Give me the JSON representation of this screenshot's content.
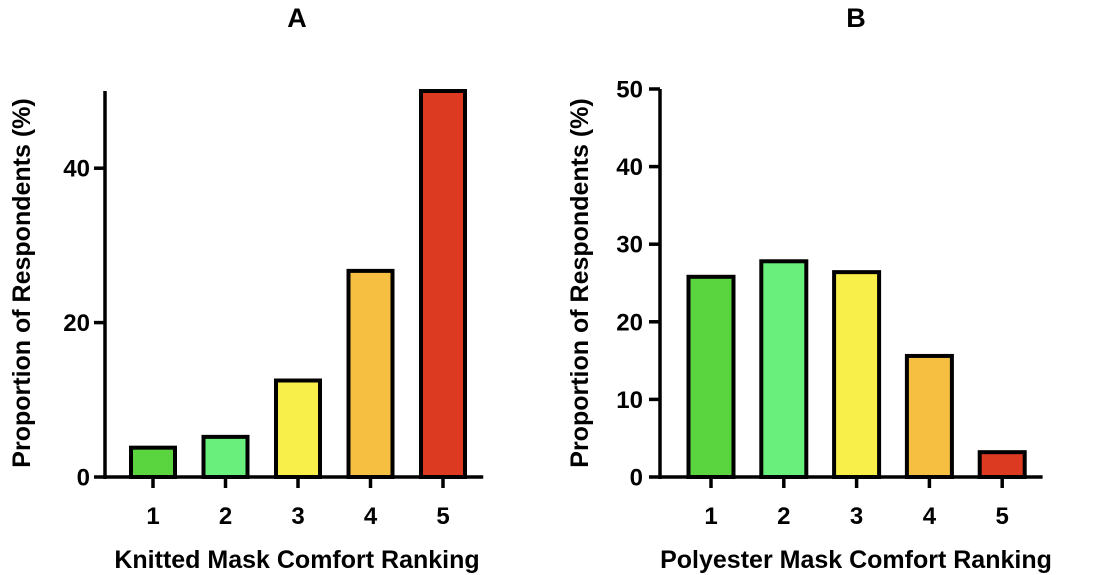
{
  "chart_data": [
    {
      "panel": "A",
      "type": "bar",
      "title": "A",
      "xlabel": "Knitted Mask Comfort Ranking",
      "ylabel": "Proportion of Respondents (%)",
      "categories": [
        "1",
        "2",
        "3",
        "4",
        "5"
      ],
      "values": [
        3.8,
        5.2,
        12.5,
        26.7,
        50.0
      ],
      "colors": [
        "#5ad43f",
        "#68ef7c",
        "#f8ef4b",
        "#f6bf42",
        "#dd3a22"
      ],
      "ylim": [
        0,
        50
      ],
      "yticks": [
        "0",
        "20",
        "40"
      ],
      "grid": false
    },
    {
      "panel": "B",
      "type": "bar",
      "title": "B",
      "xlabel": "Polyester Mask Comfort Ranking",
      "ylabel": "Proportion of Respondents (%)",
      "categories": [
        "1",
        "2",
        "3",
        "4",
        "5"
      ],
      "values": [
        25.8,
        27.8,
        26.4,
        15.6,
        3.2
      ],
      "colors": [
        "#5ad43f",
        "#68ef7c",
        "#f8ef4b",
        "#f6bf42",
        "#dd3a22"
      ],
      "ylim": [
        0,
        50
      ],
      "yticks": [
        "0",
        "10",
        "20",
        "30",
        "40",
        "50"
      ],
      "grid": false
    }
  ]
}
